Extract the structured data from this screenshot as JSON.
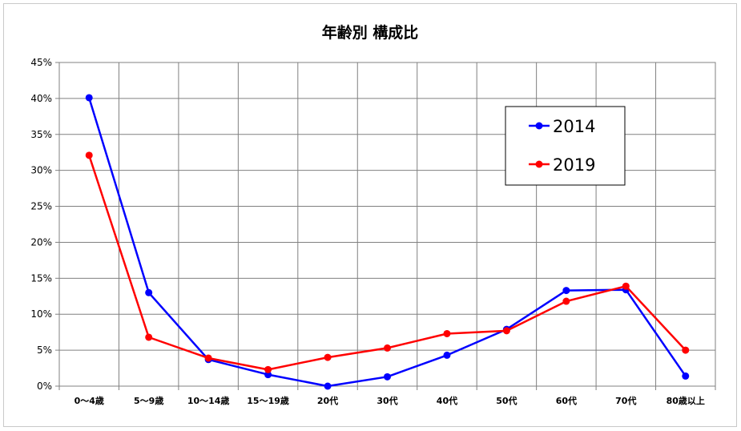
{
  "chart_data": {
    "type": "line",
    "title": "年齢別 構成比",
    "xlabel": "",
    "ylabel": "",
    "categories": [
      "0～4歳",
      "5～9歳",
      "10～14歳",
      "15～19歳",
      "20代",
      "30代",
      "40代",
      "50代",
      "60代",
      "70代",
      "80歳以上"
    ],
    "yticks": [
      "0%",
      "5%",
      "10%",
      "15%",
      "20%",
      "25%",
      "30%",
      "35%",
      "40%",
      "45%"
    ],
    "ylim": [
      0,
      0.45
    ],
    "grid": true,
    "legend_position": "top-right",
    "series": [
      {
        "name": "2014",
        "color": "#0000ff",
        "values": [
          0.401,
          0.13,
          0.037,
          0.016,
          0.0,
          0.013,
          0.043,
          0.079,
          0.133,
          0.134,
          0.014
        ]
      },
      {
        "name": "2019",
        "color": "#ff0000",
        "values": [
          0.321,
          0.068,
          0.039,
          0.023,
          0.04,
          0.053,
          0.073,
          0.077,
          0.118,
          0.139,
          0.05
        ]
      }
    ]
  }
}
